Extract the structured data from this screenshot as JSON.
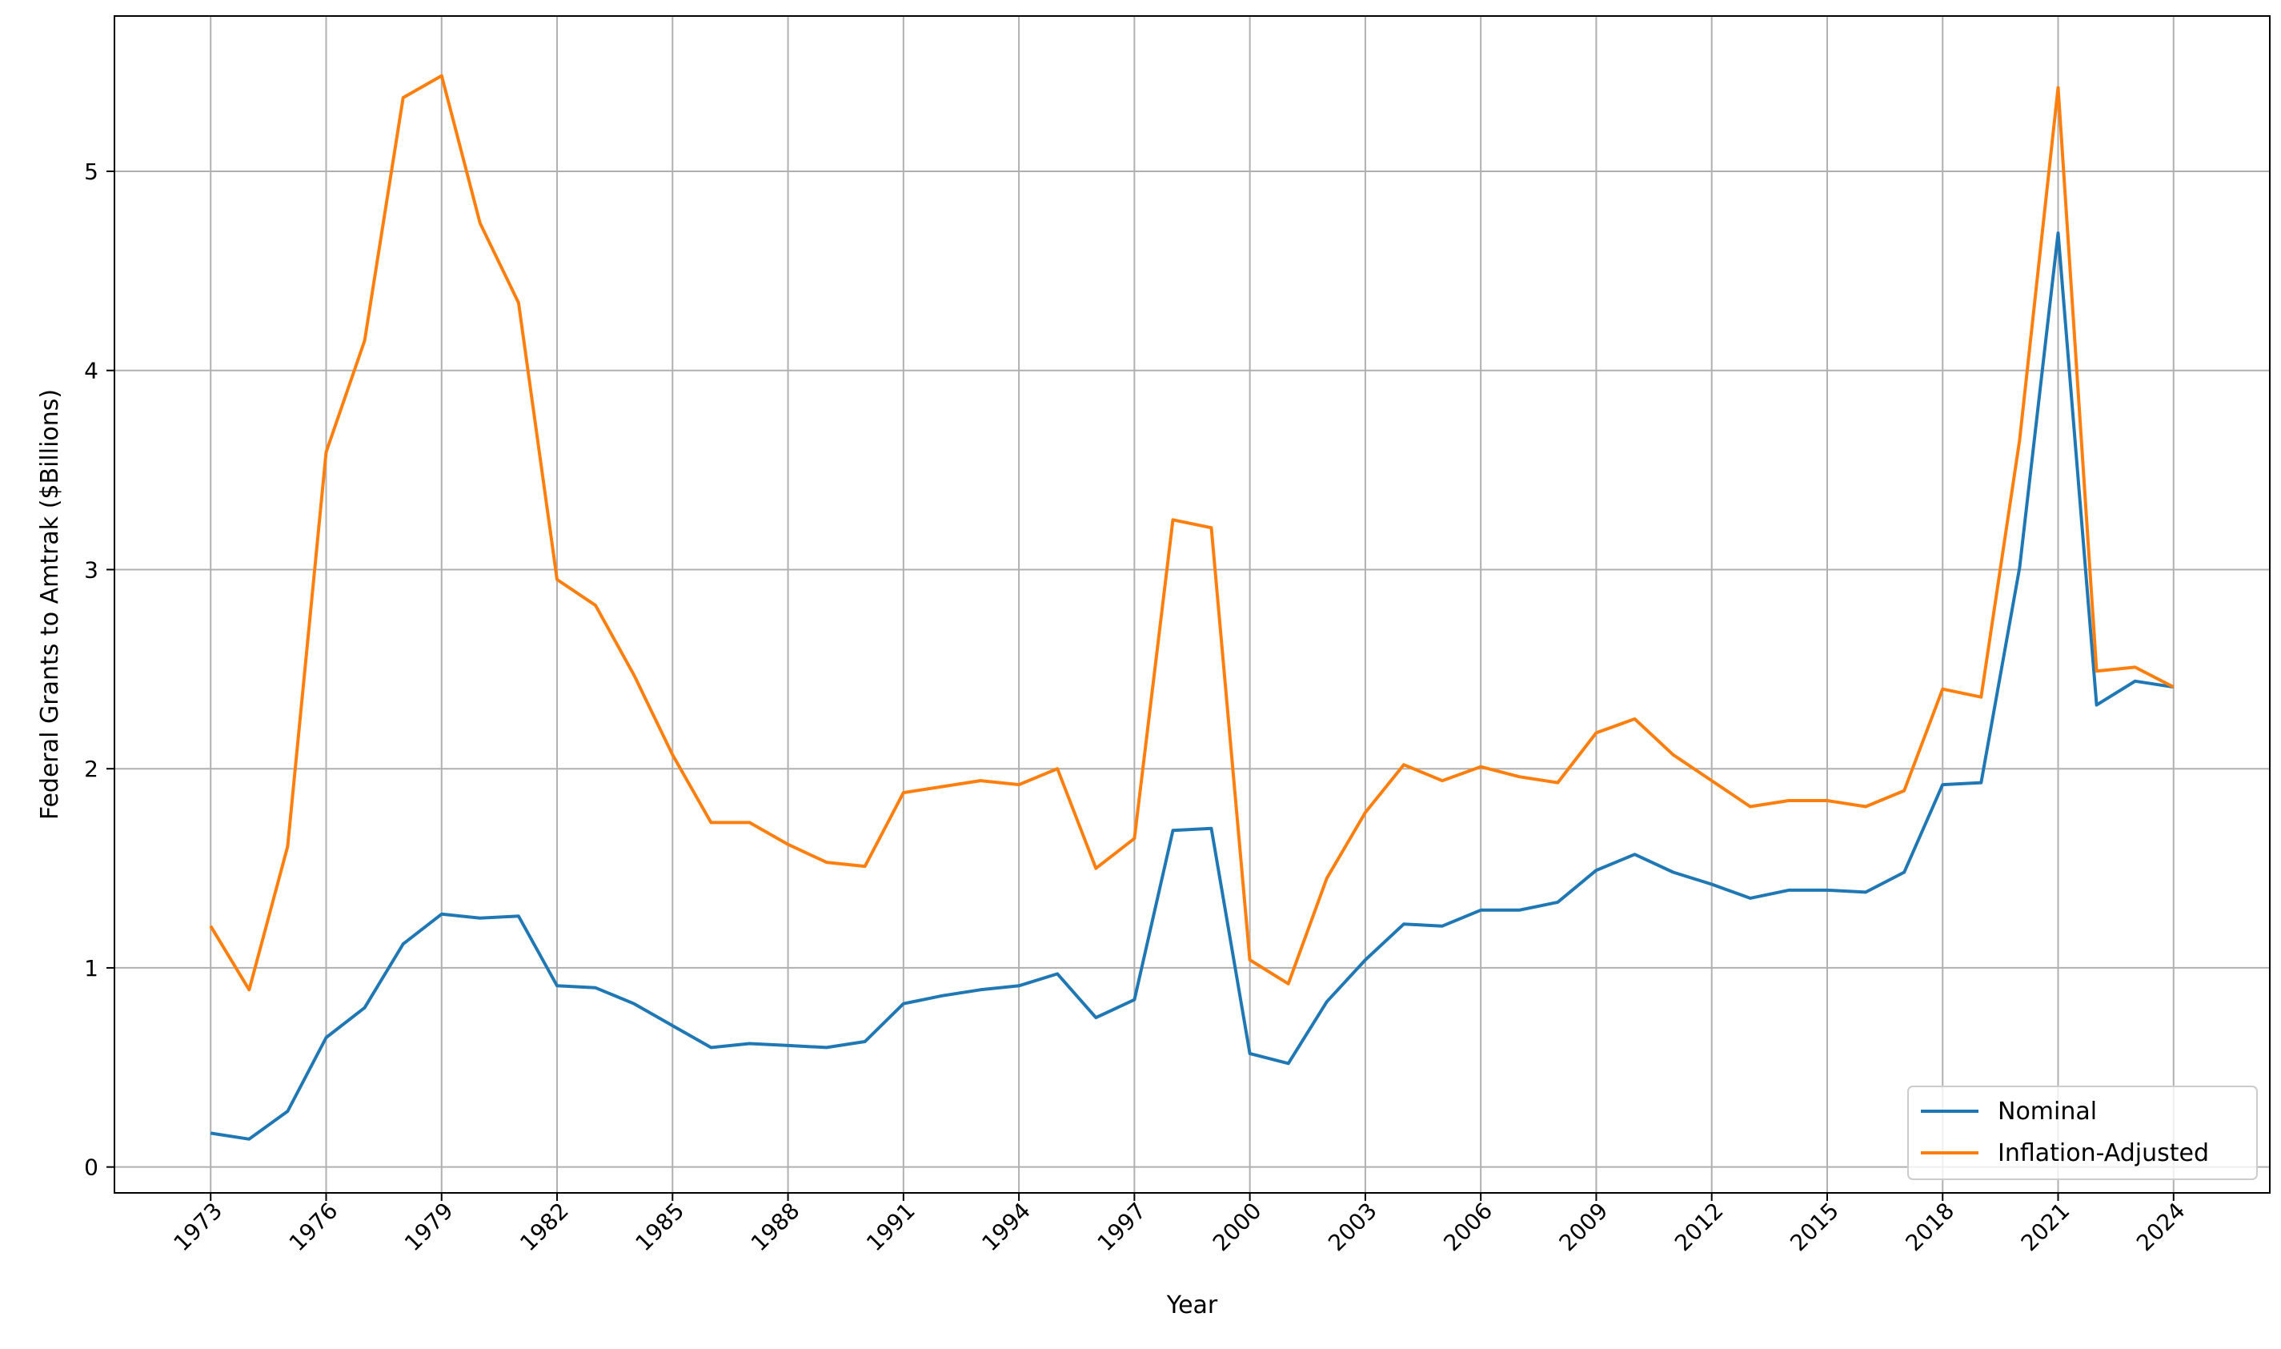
{
  "chart_data": {
    "type": "line",
    "title": "",
    "xlabel": "Year",
    "ylabel": "Federal Grants to Amtrak ($Billions)",
    "xlim": [
      1970.5,
      2026.5
    ],
    "ylim": [
      -0.13,
      5.78
    ],
    "grid": true,
    "legend_position": "lower-right",
    "x_ticks": [
      1973,
      1976,
      1979,
      1982,
      1985,
      1988,
      1991,
      1994,
      1997,
      2000,
      2003,
      2006,
      2009,
      2012,
      2015,
      2018,
      2021,
      2024
    ],
    "y_ticks": [
      0,
      1,
      2,
      3,
      4,
      5
    ],
    "x": [
      1973,
      1974,
      1975,
      1976,
      1977,
      1978,
      1979,
      1980,
      1981,
      1982,
      1983,
      1984,
      1985,
      1986,
      1987,
      1988,
      1989,
      1990,
      1991,
      1992,
      1993,
      1994,
      1995,
      1996,
      1997,
      1998,
      1999,
      2000,
      2001,
      2002,
      2003,
      2004,
      2005,
      2006,
      2007,
      2008,
      2009,
      2010,
      2011,
      2012,
      2013,
      2014,
      2015,
      2016,
      2017,
      2018,
      2019,
      2020,
      2021,
      2022,
      2023,
      2024
    ],
    "series": [
      {
        "name": "Nominal",
        "color": "#1f77b4",
        "values": [
          0.17,
          0.14,
          0.28,
          0.65,
          0.8,
          1.12,
          1.27,
          1.25,
          1.26,
          0.91,
          0.9,
          0.82,
          0.71,
          0.6,
          0.62,
          0.61,
          0.6,
          0.63,
          0.82,
          0.86,
          0.89,
          0.91,
          0.97,
          0.75,
          0.84,
          1.69,
          1.7,
          0.57,
          0.52,
          0.83,
          1.04,
          1.22,
          1.21,
          1.29,
          1.29,
          1.33,
          1.49,
          1.57,
          1.48,
          1.42,
          1.35,
          1.39,
          1.39,
          1.38,
          1.48,
          1.92,
          1.93,
          3.01,
          4.69,
          2.32,
          2.44,
          2.41
        ]
      },
      {
        "name": "Inflation-Adjusted",
        "color": "#ff7f0e",
        "values": [
          1.21,
          0.89,
          1.61,
          3.59,
          4.15,
          5.37,
          5.48,
          4.74,
          4.34,
          2.95,
          2.82,
          2.47,
          2.07,
          1.73,
          1.73,
          1.62,
          1.53,
          1.51,
          1.88,
          1.91,
          1.94,
          1.92,
          2.0,
          1.5,
          1.65,
          3.25,
          3.21,
          1.04,
          0.92,
          1.45,
          1.78,
          2.02,
          1.94,
          2.01,
          1.96,
          1.93,
          2.18,
          2.25,
          2.07,
          1.94,
          1.81,
          1.84,
          1.84,
          1.81,
          1.89,
          2.4,
          2.36,
          3.65,
          5.42,
          2.49,
          2.51,
          2.41
        ]
      }
    ]
  }
}
